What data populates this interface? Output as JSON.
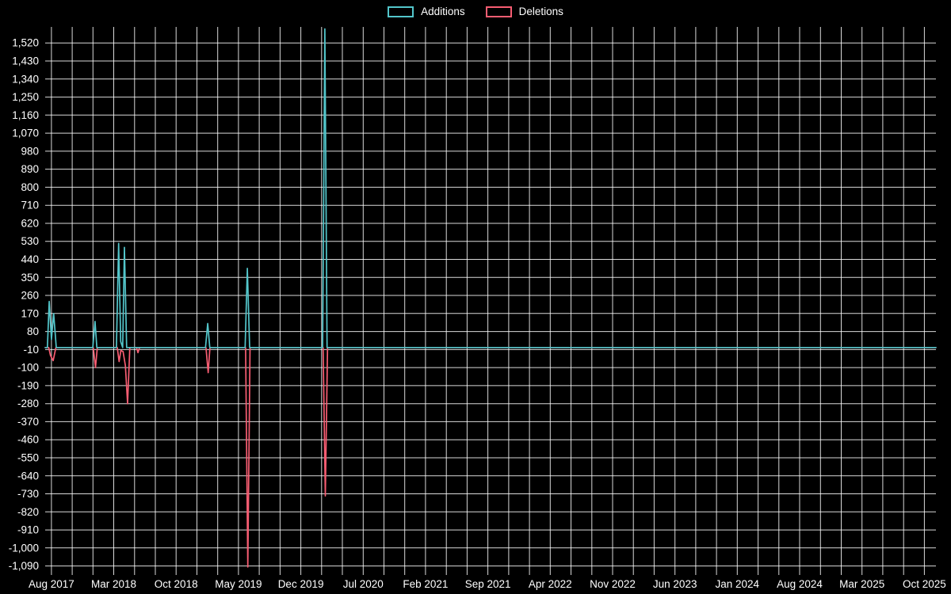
{
  "legend": {
    "items": [
      {
        "label": "Additions",
        "color": "#53c6cb"
      },
      {
        "label": "Deletions",
        "color": "#f85d72"
      }
    ]
  },
  "chart_data": {
    "type": "line",
    "title": "",
    "xlabel": "",
    "ylabel": "",
    "background": "#000000",
    "grid_color": "#ffffff",
    "text_color": "#ffffff",
    "xlim": [
      -0.7,
      99.3
    ],
    "ylim": [
      -1135,
      1600
    ],
    "x_axis": {
      "unit": "months since Aug 2017",
      "tick_positions": [
        0,
        7,
        14,
        21,
        28,
        35,
        42,
        49,
        56,
        63,
        70,
        77,
        84,
        91,
        98
      ],
      "tick_labels": [
        "Aug 2017",
        "Mar 2018",
        "Oct 2018",
        "May 2019",
        "Dec 2019",
        "Jul 2020",
        "Feb 2021",
        "Sep 2021",
        "Apr 2022",
        "Nov 2022",
        "Jun 2023",
        "Jan 2024",
        "Aug 2024",
        "Mar 2025",
        "Oct 2025"
      ],
      "minor_per_interval": 3
    },
    "y_axis": {
      "tick_start": -1090,
      "tick_end": 1520,
      "tick_step": 90
    },
    "series": [
      {
        "name": "Additions",
        "color": "#53c6cb",
        "points": [
          [
            -0.7,
            0
          ],
          [
            -0.45,
            0
          ],
          [
            -0.25,
            230
          ],
          [
            0.0,
            40
          ],
          [
            0.25,
            170
          ],
          [
            0.55,
            0
          ],
          [
            4.65,
            0
          ],
          [
            4.9,
            130
          ],
          [
            5.1,
            0
          ],
          [
            7.3,
            0
          ],
          [
            7.55,
            520
          ],
          [
            7.78,
            30
          ],
          [
            8.0,
            0
          ],
          [
            8.2,
            500
          ],
          [
            8.45,
            0
          ],
          [
            17.3,
            0
          ],
          [
            17.55,
            120
          ],
          [
            17.78,
            0
          ],
          [
            21.75,
            0
          ],
          [
            22.0,
            395
          ],
          [
            22.25,
            0
          ],
          [
            30.45,
            0
          ],
          [
            30.7,
            1590
          ],
          [
            30.95,
            0
          ],
          [
            99.3,
            0
          ]
        ]
      },
      {
        "name": "Deletions",
        "color": "#f85d72",
        "points": [
          [
            -0.7,
            0
          ],
          [
            -0.3,
            0
          ],
          [
            -0.1,
            -40
          ],
          [
            0.2,
            -65
          ],
          [
            0.5,
            0
          ],
          [
            4.7,
            0
          ],
          [
            4.95,
            -100
          ],
          [
            5.15,
            0
          ],
          [
            7.4,
            0
          ],
          [
            7.6,
            -70
          ],
          [
            7.8,
            -15
          ],
          [
            8.05,
            -20
          ],
          [
            8.3,
            -90
          ],
          [
            8.55,
            -280
          ],
          [
            8.8,
            0
          ],
          [
            9.55,
            0
          ],
          [
            9.72,
            -25
          ],
          [
            9.9,
            0
          ],
          [
            17.35,
            0
          ],
          [
            17.6,
            -125
          ],
          [
            17.8,
            0
          ],
          [
            21.8,
            0
          ],
          [
            22.05,
            -1095
          ],
          [
            22.3,
            0
          ],
          [
            30.5,
            0
          ],
          [
            30.75,
            -740
          ],
          [
            31.0,
            0
          ],
          [
            99.3,
            0
          ]
        ]
      }
    ]
  }
}
